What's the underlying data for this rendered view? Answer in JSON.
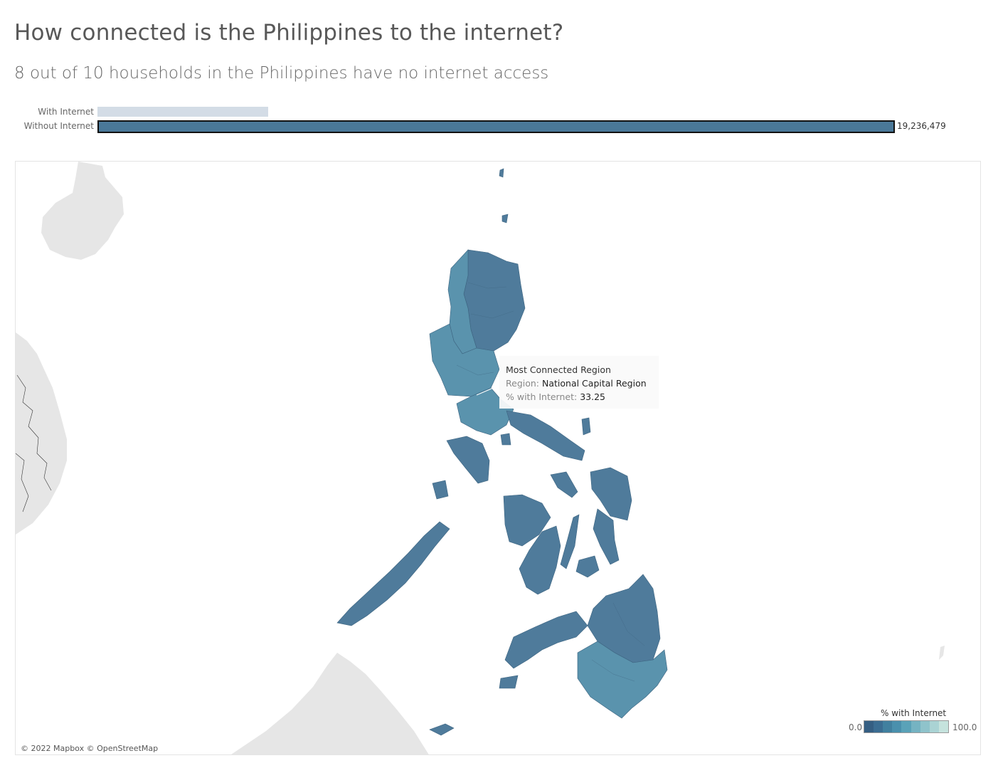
{
  "header": {
    "title": "How connected is the Philippines to the internet?",
    "subtitle": "8 out of 10 households in the Philippines have no internet access"
  },
  "households_chart": {
    "type": "bar",
    "categories": [
      "With Internet",
      "Without Internet"
    ],
    "values": [
      4110000,
      19236479
    ],
    "value_label": "19,236,479",
    "colors": [
      "#d3dce6",
      "#4a7898"
    ]
  },
  "map": {
    "tooltip": {
      "heading": "Most Connected Region",
      "region_key": "Region:",
      "region_value": "National Capital Region",
      "pct_key": "% with Internet:",
      "pct_value": "33.25"
    },
    "legend": {
      "title": "% with Internet",
      "min": "0.0",
      "max": "100.0",
      "colors": [
        "#355e82",
        "#3b6d92",
        "#41809f",
        "#4a90ad",
        "#5aa2b8",
        "#75b3c2",
        "#8fc3cb",
        "#aad3d4",
        "#c5e3dd"
      ]
    },
    "colors": {
      "land_neighbor": "#e6e6e6",
      "region_fill": "#4f7b9b",
      "region_fill_light": "#5a93ad",
      "border": "#3d6480"
    },
    "credit": "© 2022 Mapbox © OpenStreetMap"
  }
}
